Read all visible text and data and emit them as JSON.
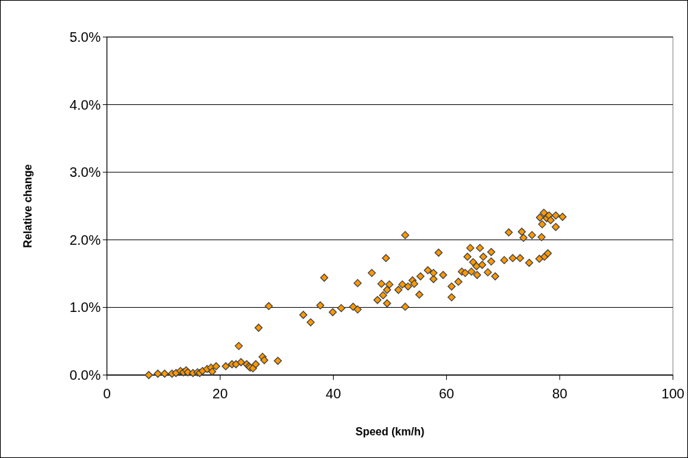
{
  "chart_data": {
    "type": "scatter",
    "xlabel": "Speed (km/h)",
    "ylabel": "Relative change",
    "xlim": [
      0,
      100
    ],
    "xticks": [
      0,
      20,
      40,
      60,
      80,
      100
    ],
    "ylim": [
      0,
      5
    ],
    "yticks": [
      {
        "value": 0,
        "label": "0.0%"
      },
      {
        "value": 1,
        "label": "1.0%"
      },
      {
        "value": 2,
        "label": "2.0%"
      },
      {
        "value": 3,
        "label": "3.0%"
      },
      {
        "value": 4,
        "label": "4.0%"
      },
      {
        "value": 5,
        "label": "5.0%"
      }
    ],
    "grid": "y",
    "marker": "diamond",
    "series": [
      {
        "color": "#ff9900",
        "x": [
          7.4,
          9.0,
          10.2,
          11.5,
          12.2,
          13.0,
          13.5,
          14.0,
          14.3,
          15.2,
          16.0,
          16.4,
          16.9,
          17.7,
          18.4,
          18.6,
          19.3,
          21.0,
          22.1,
          22.8,
          23.3,
          23.7,
          24.7,
          25.1,
          25.3,
          25.8,
          26.3,
          26.8,
          27.5,
          28.6,
          27.8,
          30.2,
          34.7,
          36.0,
          37.7,
          38.4,
          39.9,
          41.4,
          43.5,
          44.3,
          44.3,
          46.8,
          47.8,
          48.5,
          48.8,
          49.5,
          49.3,
          49.5,
          49.9,
          51.5,
          52.2,
          52.7,
          52.7,
          53.2,
          54.0,
          54.3,
          55.2,
          55.4,
          56.7,
          57.7,
          57.7,
          58.6,
          59.4,
          60.9,
          60.9,
          62.1,
          62.7,
          63.3,
          63.7,
          64.2,
          64.4,
          64.7,
          65.3,
          65.4,
          65.9,
          66.3,
          66.5,
          67.3,
          67.9,
          67.9,
          68.6,
          70.2,
          71.0,
          71.7,
          73.0,
          73.3,
          73.6,
          74.6,
          75.1,
          76.4,
          76.5,
          76.8,
          76.9,
          77.2,
          77.3,
          77.7,
          77.9,
          78.1,
          78.4,
          79.3,
          79.3,
          80.5
        ],
        "values": [
          0.0,
          0.02,
          0.02,
          0.02,
          0.03,
          0.06,
          0.04,
          0.07,
          0.04,
          0.03,
          0.04,
          0.03,
          0.06,
          0.09,
          0.11,
          0.05,
          0.13,
          0.13,
          0.16,
          0.16,
          0.43,
          0.19,
          0.16,
          0.13,
          0.11,
          0.1,
          0.16,
          0.7,
          0.27,
          1.02,
          0.22,
          0.21,
          0.89,
          0.78,
          1.03,
          1.44,
          0.93,
          0.99,
          1.01,
          0.97,
          1.36,
          1.51,
          1.11,
          1.35,
          1.18,
          1.26,
          1.73,
          1.06,
          1.34,
          1.26,
          1.34,
          2.07,
          1.01,
          1.31,
          1.4,
          1.35,
          1.19,
          1.46,
          1.55,
          1.42,
          1.51,
          1.81,
          1.48,
          1.15,
          1.31,
          1.38,
          1.53,
          1.51,
          1.75,
          1.88,
          1.53,
          1.67,
          1.61,
          1.48,
          1.88,
          1.63,
          1.75,
          1.52,
          1.82,
          1.68,
          1.46,
          1.7,
          2.11,
          1.73,
          1.73,
          2.12,
          2.03,
          1.66,
          2.07,
          1.72,
          2.33,
          2.04,
          2.23,
          2.4,
          1.75,
          2.32,
          1.8,
          2.36,
          2.29,
          2.36,
          2.19,
          2.34
        ]
      }
    ]
  }
}
